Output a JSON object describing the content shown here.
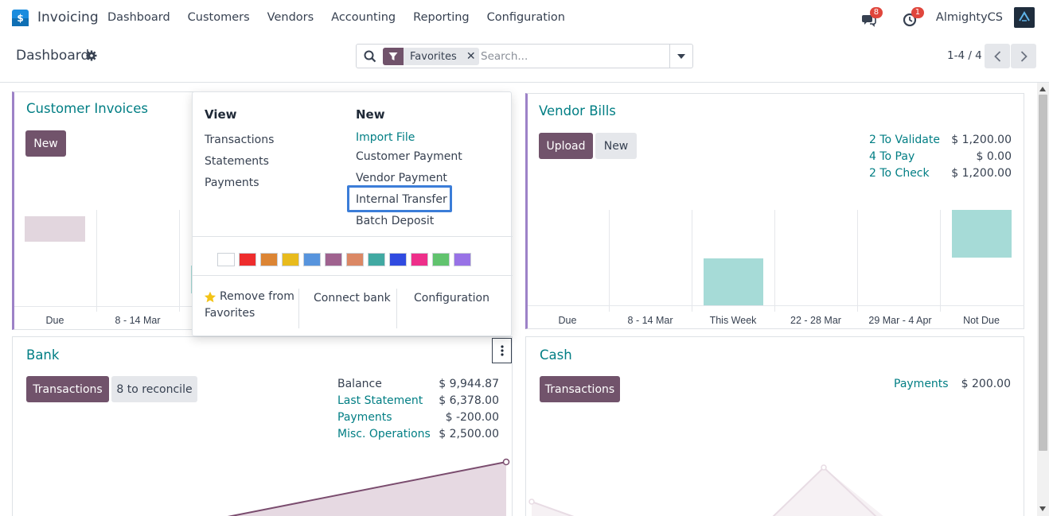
{
  "navbar": {
    "app_name": "Invoicing",
    "menu": [
      "Dashboard",
      "Customers",
      "Vendors",
      "Accounting",
      "Reporting",
      "Configuration"
    ],
    "messages_count": "8",
    "activities_count": "1",
    "user_name": "AlmightyCS"
  },
  "control_panel": {
    "title": "Dashboard",
    "facet_label": "Favorites",
    "search_placeholder": "Search...",
    "pager_value": "1-4 / 4"
  },
  "customer_invoices": {
    "title": "Customer Invoices",
    "new_label": "New",
    "ticks": [
      "Due",
      "8 - 14 Mar"
    ]
  },
  "vendor_bills": {
    "title": "Vendor Bills",
    "upload_label": "Upload",
    "new_label": "New",
    "stats": [
      {
        "label": "2 To Validate",
        "value": "$ 1,200.00"
      },
      {
        "label": "4 To Pay",
        "value": "$ 0.00"
      },
      {
        "label": "2 To Check",
        "value": "$ 1,200.00"
      }
    ],
    "ticks": [
      "Due",
      "8 - 14 Mar",
      "This Week",
      "22 - 28 Mar",
      "29 Mar - 4 Apr",
      "Not Due"
    ]
  },
  "bank": {
    "title": "Bank",
    "transactions_label": "Transactions",
    "reconcile_label": "8 to reconcile",
    "stats": [
      {
        "label": "Balance",
        "value": "$ 9,944.87"
      },
      {
        "label": "Last Statement",
        "value": "$ 6,378.00"
      },
      {
        "label": "Payments",
        "value": "$ -200.00"
      },
      {
        "label": "Misc. Operations",
        "value": "$ 2,500.00"
      }
    ]
  },
  "cash": {
    "title": "Cash",
    "transactions_label": "Transactions",
    "stats": [
      {
        "label": "Payments",
        "value": "$ 200.00"
      }
    ]
  },
  "dropdown": {
    "view_heading": "View",
    "view_items": [
      "Transactions",
      "Statements",
      "Payments"
    ],
    "new_heading": "New",
    "new_items": [
      "Import File",
      "Customer Payment",
      "Vendor Payment",
      "Internal Transfer",
      "Batch Deposit"
    ],
    "colors": [
      "#ffffff",
      "#ee2d2d",
      "#dc8534",
      "#e8bb1d",
      "#5794dd",
      "#9f628f",
      "#db8865",
      "#41a9a2",
      "#304be0",
      "#ee2f8a",
      "#61c36e",
      "#9872e6"
    ],
    "remove_favorites_line1": "Remove from",
    "remove_favorites_line2": "Favorites",
    "connect_bank_label": "Connect bank",
    "configuration_label": "Configuration"
  },
  "colors": {
    "brand": "#71536b",
    "link": "#017e84",
    "accent_border": "#9d82c7",
    "teal_bar": "#a6dbd7",
    "pink_bar": "#e2d6de"
  }
}
